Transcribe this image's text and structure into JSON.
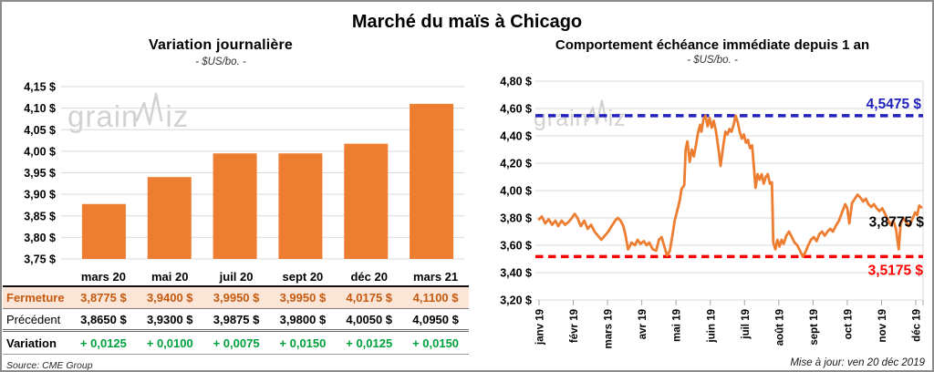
{
  "title": "Marché du maïs à Chicago",
  "source": "Source: CME Group",
  "updated": "Mise à jour: ven 20 déc 2019",
  "watermark": {
    "part1": "grain",
    "part2": "iz"
  },
  "colors": {
    "accent_orange": "#ED7D31",
    "ref_blue": "#2121BE",
    "ref_red": "#FF0000",
    "variation_green": "#00A13C",
    "fermeture_bg": "#FBE5D6",
    "fermeture_text": "#C55A11",
    "grid": "#D9D9D9",
    "tick": "#A6A6A6",
    "watermark_gray": "#D2D2D2"
  },
  "table": {
    "columns": [
      "mars 20",
      "mai 20",
      "juil 20",
      "sept 20",
      "déc 20",
      "mars 21"
    ],
    "rows": [
      {
        "label": "Fermeture",
        "style": "fermeture",
        "values": [
          "3,8775 $",
          "3,9400 $",
          "3,9950 $",
          "3,9950 $",
          "4,0175 $",
          "4,1100 $"
        ]
      },
      {
        "label": "Précédent",
        "style": "precedent",
        "values": [
          "3,8650 $",
          "3,9300 $",
          "3,9875 $",
          "3,9800 $",
          "4,0050 $",
          "4,0950 $"
        ]
      },
      {
        "label": "Variation",
        "style": "variation",
        "values": [
          "+ 0,0125",
          "+ 0,0100",
          "+ 0,0075",
          "+ 0,0150",
          "+ 0,0125",
          "+ 0,0150"
        ]
      }
    ]
  },
  "chart_data": [
    {
      "type": "bar",
      "title": "Variation journalière",
      "subtitle": "- $US/bo. -",
      "categories": [
        "mars 20",
        "mai 20",
        "juil 20",
        "sept 20",
        "déc 20",
        "mars 21"
      ],
      "values": [
        3.8775,
        3.94,
        3.995,
        3.995,
        4.0175,
        4.11
      ],
      "ylabel": "$US/bo.",
      "ylim": [
        3.75,
        4.15
      ],
      "ytick_step": 0.05,
      "grid": true,
      "bar_color": "#ED7D31",
      "tick_suffix": " $"
    },
    {
      "type": "line",
      "title": "Comportement échéance immédiate depuis 1 an",
      "subtitle": "- $US/bo. -",
      "x_labels": [
        "janv 19",
        "févr 19",
        "mars 19",
        "avr 19",
        "mai 19",
        "juin 19",
        "juil 19",
        "août 19",
        "sept 19",
        "oct 19",
        "nov 19",
        "déc 19"
      ],
      "ylim": [
        3.2,
        4.8
      ],
      "ytick_step": 0.2,
      "grid": true,
      "tick_suffix": " $",
      "line_color": "#ED7D31",
      "ref_lines": [
        {
          "value": 4.5475,
          "label": "4,5475 $",
          "color": "#2121BE",
          "style": "dashed"
        },
        {
          "value": 3.5175,
          "label": "3,5175 $",
          "color": "#FF0000",
          "style": "dashed"
        }
      ],
      "end_label": {
        "value": 3.8775,
        "label": "3,8775 $",
        "color": "#000000"
      },
      "series": [
        {
          "name": "échéance immédiate",
          "color": "#ED7D31",
          "points": [
            [
              0.0,
              3.79
            ],
            [
              0.08,
              3.81
            ],
            [
              0.18,
              3.76
            ],
            [
              0.28,
              3.79
            ],
            [
              0.38,
              3.75
            ],
            [
              0.48,
              3.78
            ],
            [
              0.56,
              3.74
            ],
            [
              0.66,
              3.78
            ],
            [
              0.76,
              3.75
            ],
            [
              0.86,
              3.77
            ],
            [
              0.96,
              3.8
            ],
            [
              1.04,
              3.83
            ],
            [
              1.12,
              3.8
            ],
            [
              1.22,
              3.74
            ],
            [
              1.32,
              3.78
            ],
            [
              1.42,
              3.72
            ],
            [
              1.52,
              3.75
            ],
            [
              1.62,
              3.7
            ],
            [
              1.72,
              3.67
            ],
            [
              1.82,
              3.64
            ],
            [
              1.92,
              3.67
            ],
            [
              2.02,
              3.7
            ],
            [
              2.12,
              3.74
            ],
            [
              2.22,
              3.78
            ],
            [
              2.3,
              3.8
            ],
            [
              2.38,
              3.78
            ],
            [
              2.46,
              3.74
            ],
            [
              2.52,
              3.68
            ],
            [
              2.6,
              3.57
            ],
            [
              2.7,
              3.62
            ],
            [
              2.8,
              3.6
            ],
            [
              2.88,
              3.64
            ],
            [
              2.96,
              3.61
            ],
            [
              3.06,
              3.63
            ],
            [
              3.14,
              3.6
            ],
            [
              3.22,
              3.62
            ],
            [
              3.32,
              3.57
            ],
            [
              3.42,
              3.56
            ],
            [
              3.5,
              3.64
            ],
            [
              3.58,
              3.66
            ],
            [
              3.66,
              3.59
            ],
            [
              3.74,
              3.525
            ],
            [
              3.82,
              3.56
            ],
            [
              3.9,
              3.68
            ],
            [
              3.96,
              3.78
            ],
            [
              4.02,
              3.84
            ],
            [
              4.1,
              3.92
            ],
            [
              4.16,
              4.01
            ],
            [
              4.24,
              4.04
            ],
            [
              4.28,
              4.3
            ],
            [
              4.33,
              4.36
            ],
            [
              4.4,
              4.21
            ],
            [
              4.46,
              4.3
            ],
            [
              4.52,
              4.25
            ],
            [
              4.58,
              4.33
            ],
            [
              4.64,
              4.42
            ],
            [
              4.7,
              4.48
            ],
            [
              4.74,
              4.43
            ],
            [
              4.8,
              4.52
            ],
            [
              4.86,
              4.5475
            ],
            [
              4.92,
              4.47
            ],
            [
              4.98,
              4.53
            ],
            [
              5.04,
              4.46
            ],
            [
              5.1,
              4.51
            ],
            [
              5.16,
              4.44
            ],
            [
              5.24,
              4.3
            ],
            [
              5.3,
              4.18
            ],
            [
              5.38,
              4.33
            ],
            [
              5.44,
              4.43
            ],
            [
              5.5,
              4.41
            ],
            [
              5.56,
              4.45
            ],
            [
              5.62,
              4.43
            ],
            [
              5.68,
              4.48
            ],
            [
              5.74,
              4.5475
            ],
            [
              5.8,
              4.5
            ],
            [
              5.86,
              4.43
            ],
            [
              5.92,
              4.38
            ],
            [
              5.98,
              4.41
            ],
            [
              6.04,
              4.35
            ],
            [
              6.1,
              4.37
            ],
            [
              6.16,
              4.31
            ],
            [
              6.22,
              4.33
            ],
            [
              6.28,
              4.15
            ],
            [
              6.32,
              4.02
            ],
            [
              6.38,
              4.12
            ],
            [
              6.44,
              4.08
            ],
            [
              6.5,
              4.12
            ],
            [
              6.56,
              4.05
            ],
            [
              6.62,
              4.1
            ],
            [
              6.68,
              4.12
            ],
            [
              6.74,
              4.05
            ],
            [
              6.8,
              4.06
            ],
            [
              6.84,
              3.62
            ],
            [
              6.9,
              3.57
            ],
            [
              6.96,
              3.64
            ],
            [
              7.02,
              3.59
            ],
            [
              7.08,
              3.64
            ],
            [
              7.14,
              3.61
            ],
            [
              7.22,
              3.67
            ],
            [
              7.3,
              3.7
            ],
            [
              7.38,
              3.66
            ],
            [
              7.46,
              3.62
            ],
            [
              7.54,
              3.6
            ],
            [
              7.62,
              3.56
            ],
            [
              7.7,
              3.5175
            ],
            [
              7.78,
              3.55
            ],
            [
              7.86,
              3.6
            ],
            [
              7.94,
              3.64
            ],
            [
              8.02,
              3.66
            ],
            [
              8.1,
              3.63
            ],
            [
              8.18,
              3.68
            ],
            [
              8.26,
              3.7
            ],
            [
              8.34,
              3.67
            ],
            [
              8.42,
              3.7
            ],
            [
              8.5,
              3.72
            ],
            [
              8.58,
              3.7
            ],
            [
              8.66,
              3.74
            ],
            [
              8.76,
              3.78
            ],
            [
              8.86,
              3.85
            ],
            [
              8.94,
              3.9
            ],
            [
              9.0,
              3.87
            ],
            [
              9.06,
              3.76
            ],
            [
              9.14,
              3.91
            ],
            [
              9.22,
              3.94
            ],
            [
              9.3,
              3.97
            ],
            [
              9.38,
              3.95
            ],
            [
              9.46,
              3.92
            ],
            [
              9.54,
              3.94
            ],
            [
              9.62,
              3.9
            ],
            [
              9.7,
              3.88
            ],
            [
              9.78,
              3.9
            ],
            [
              9.86,
              3.87
            ],
            [
              9.94,
              3.85
            ],
            [
              10.02,
              3.87
            ],
            [
              10.1,
              3.83
            ],
            [
              10.18,
              3.79
            ],
            [
              10.26,
              3.75
            ],
            [
              10.34,
              3.78
            ],
            [
              10.42,
              3.72
            ],
            [
              10.5,
              3.57
            ],
            [
              10.56,
              3.76
            ],
            [
              10.64,
              3.8
            ],
            [
              10.72,
              3.77
            ],
            [
              10.8,
              3.74
            ],
            [
              10.88,
              3.78
            ],
            [
              10.98,
              3.84
            ],
            [
              11.04,
              3.82
            ],
            [
              11.1,
              3.89
            ],
            [
              11.16,
              3.8775
            ]
          ]
        }
      ]
    }
  ]
}
